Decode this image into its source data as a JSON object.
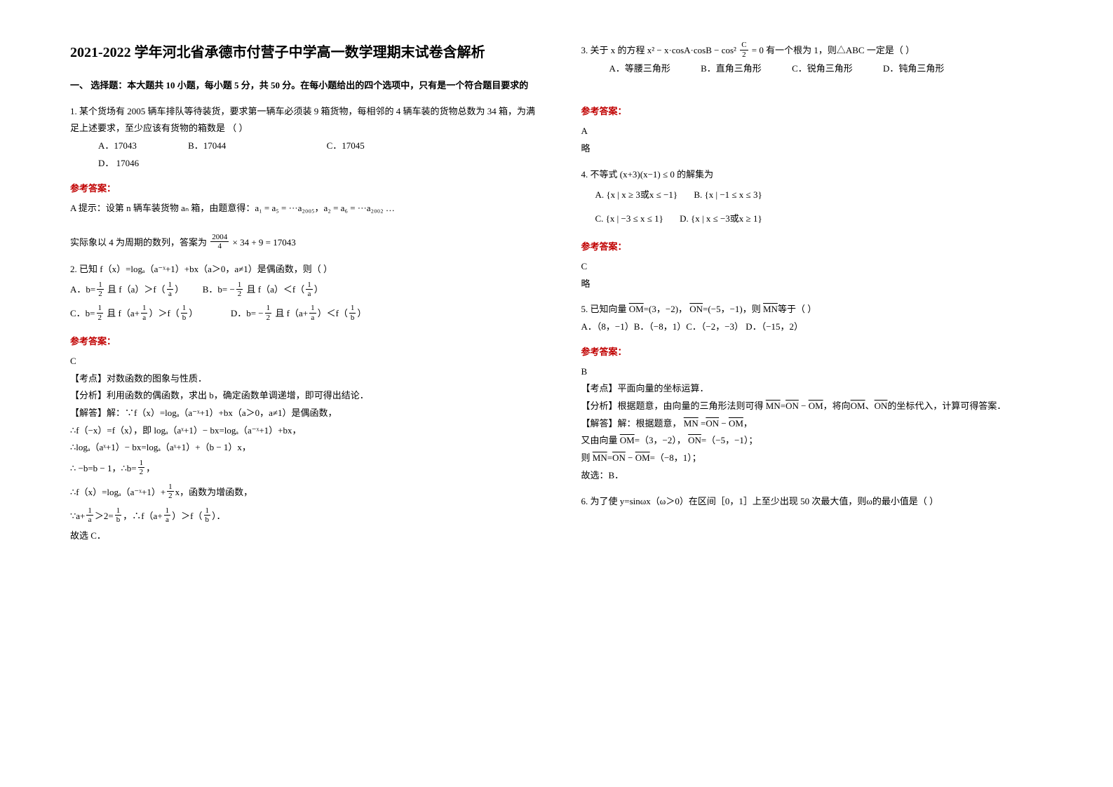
{
  "title": "2021-2022 学年河北省承德市付营子中学高一数学理期末试卷含解析",
  "section1_title": "一、 选择题：本大题共 10 小题，每小题 5 分，共 50 分。在每小题给出的四个选项中，只有是一个符合题目要求的",
  "q1": {
    "stem": "1. 某个货场有 2005 辆车排队等待装货，要求第一辆车必须装 9 箱货物，每相邻的 4 辆车装的货物总数为 34 箱，为满足上述要求，至少应该有货物的箱数是      （        ）",
    "optA": "A．17043",
    "optB": "B．17044",
    "optC": "C．17045",
    "optD": "D． 17046",
    "ref_label": "参考答案：",
    "ans_line": "A    提示：设第 n 辆车装货物 aₙ 箱，由题意得：a₁ = a₅ = ···a₂₀₀₅，a₂ = a₆ = ···a₂₀₀₂ …",
    "ans_line2_prefix": "实际象以 4 为周期的数列，答案为",
    "ans_line2_frac_num": "2004",
    "ans_line2_frac_den": "4",
    "ans_line2_suffix": "× 34 + 9 = 17043"
  },
  "q2": {
    "stem": "2. 已知 f（x）=logₐ（a⁻ˣ+1）+bx（a＞0，a≠1）是偶函数，则（    ）",
    "optA_pre": "A．b=",
    "optA_post": " 且 f（a）＞f（",
    "optA_end": "）",
    "optB_pre": "B．b= −",
    "optB_post": " 且 f（a）＜f（",
    "optB_end": "）",
    "optC_pre": "C．b=",
    "optC_mid": " 且 f（a+",
    "optC_mid2": "）＞f（",
    "optC_end": "）",
    "optD_pre": "D．b= −",
    "optD_mid": " 且 f（a+",
    "optD_mid2": "）＜f（",
    "optD_end": "）",
    "frac_num": "1",
    "frac_den": "2",
    "frac_a": "a",
    "frac_b": "b",
    "ref_label": "参考答案：",
    "ans_letter": "C",
    "an1": "【考点】对数函数的图象与性质．",
    "an2": "【分析】利用函数的偶函数，求出 b，确定函数单调递增，即可得出结论．",
    "an3": "【解答】解：∵f（x）=logₐ（a⁻ˣ+1）+bx（a＞0，a≠1）是偶函数，",
    "an4": "∴f（−x）=f（x），即 logₐ（aˣ+1）− bx=logₐ（a⁻ˣ+1）+bx，",
    "an5": "∴logₐ（aˣ+1）− bx=logₐ（aˣ+1）+（b − 1）x，",
    "an6_pre": "∴ −b=b − 1，∴b=",
    "an6_suf": "，",
    "an7_pre": "∴f（x）=logₐ（a⁻ˣ+1）+",
    "an7_suf": "x，函数为增函数，",
    "an8_pre": "∵a+",
    "an8_mid": "＞2=",
    "an8_mid2": "，∴f（a+",
    "an8_mid3": "）＞f（",
    "an8_end": "）．",
    "an9": "故选 C．"
  },
  "q3": {
    "stem_pre": "3. 关于 x 的方程 ",
    "stem_expr": "x² − x·cosA·cosB − cos²",
    "stem_frac_num": "C",
    "stem_frac_den": "2",
    "stem_post": " = 0 有一个根为 1，则△ABC 一定是（        ）",
    "optA": "A．等腰三角形",
    "optB": "B．直角三角形",
    "optC": "C．锐角三角形",
    "optD": "D．钝角三角形",
    "ref_label": "参考答案：",
    "ans_letter": "A",
    "ans_body": "略"
  },
  "q4": {
    "stem": "4. 不等式 (x+3)(x−1) ≤ 0 的解集为",
    "optA": "{x | x ≥ 3或x ≤ −1}",
    "optB": "{x | −1 ≤ x ≤ 3}",
    "optC": "{x | −3 ≤ x ≤ 1}",
    "optD": "{x | x ≤ −3或x ≥ 1}",
    "labA": "A.",
    "labB": "B.",
    "labC": "C.",
    "labD": "D.",
    "ref_label": "参考答案：",
    "ans_letter": "C",
    "ans_body": "略"
  },
  "q5": {
    "stem_pre": "5. 已知向量",
    "om": "OM",
    "om_val": "=(3，−2)，",
    "on": "ON",
    "on_val": "=(−5，−1)，则",
    "mn": "MN",
    "stem_post": "等于（    ）",
    "opts": "A．（8，−1）B．（−8，1）C．（−2，−3）    D．（−15，2）",
    "ref_label": "参考答案：",
    "ans_letter": "B",
    "an1": "【考点】平面向量的坐标运算．",
    "an2_pre": "【分析】根据题意，由向量的三角形法则可得",
    "an2_eq": "=",
    "an2_minus": " − ",
    "an2_post": "，将向",
    "an2_post2": "、",
    "an2_post3": "的坐标代入，计算可得答案．",
    "an3_pre": "【解答】解：根据题意，",
    "an3_eq": " =",
    "an3_minus": " − ",
    "an3_post": "，",
    "an4_pre": "又由向量",
    "an4_omv": "=（3，−2），",
    "an4_onv": "=（−5，−1）；",
    "an5_pre": "则",
    "an5_eq": "=",
    "an5_minus": " − ",
    "an5_val": "=（−8，1）；",
    "an6": "故选：B．"
  },
  "q6": {
    "stem": "6. 为了使 y=sinωx（ω＞0）在区间［0，1］上至少出现 50 次最大值，则ω的最小值是（  ）"
  },
  "fonts": {
    "body_size": 13,
    "title_size": 20
  },
  "colors": {
    "text": "#000000",
    "ref_red": "#c00000",
    "bg": "#ffffff"
  }
}
